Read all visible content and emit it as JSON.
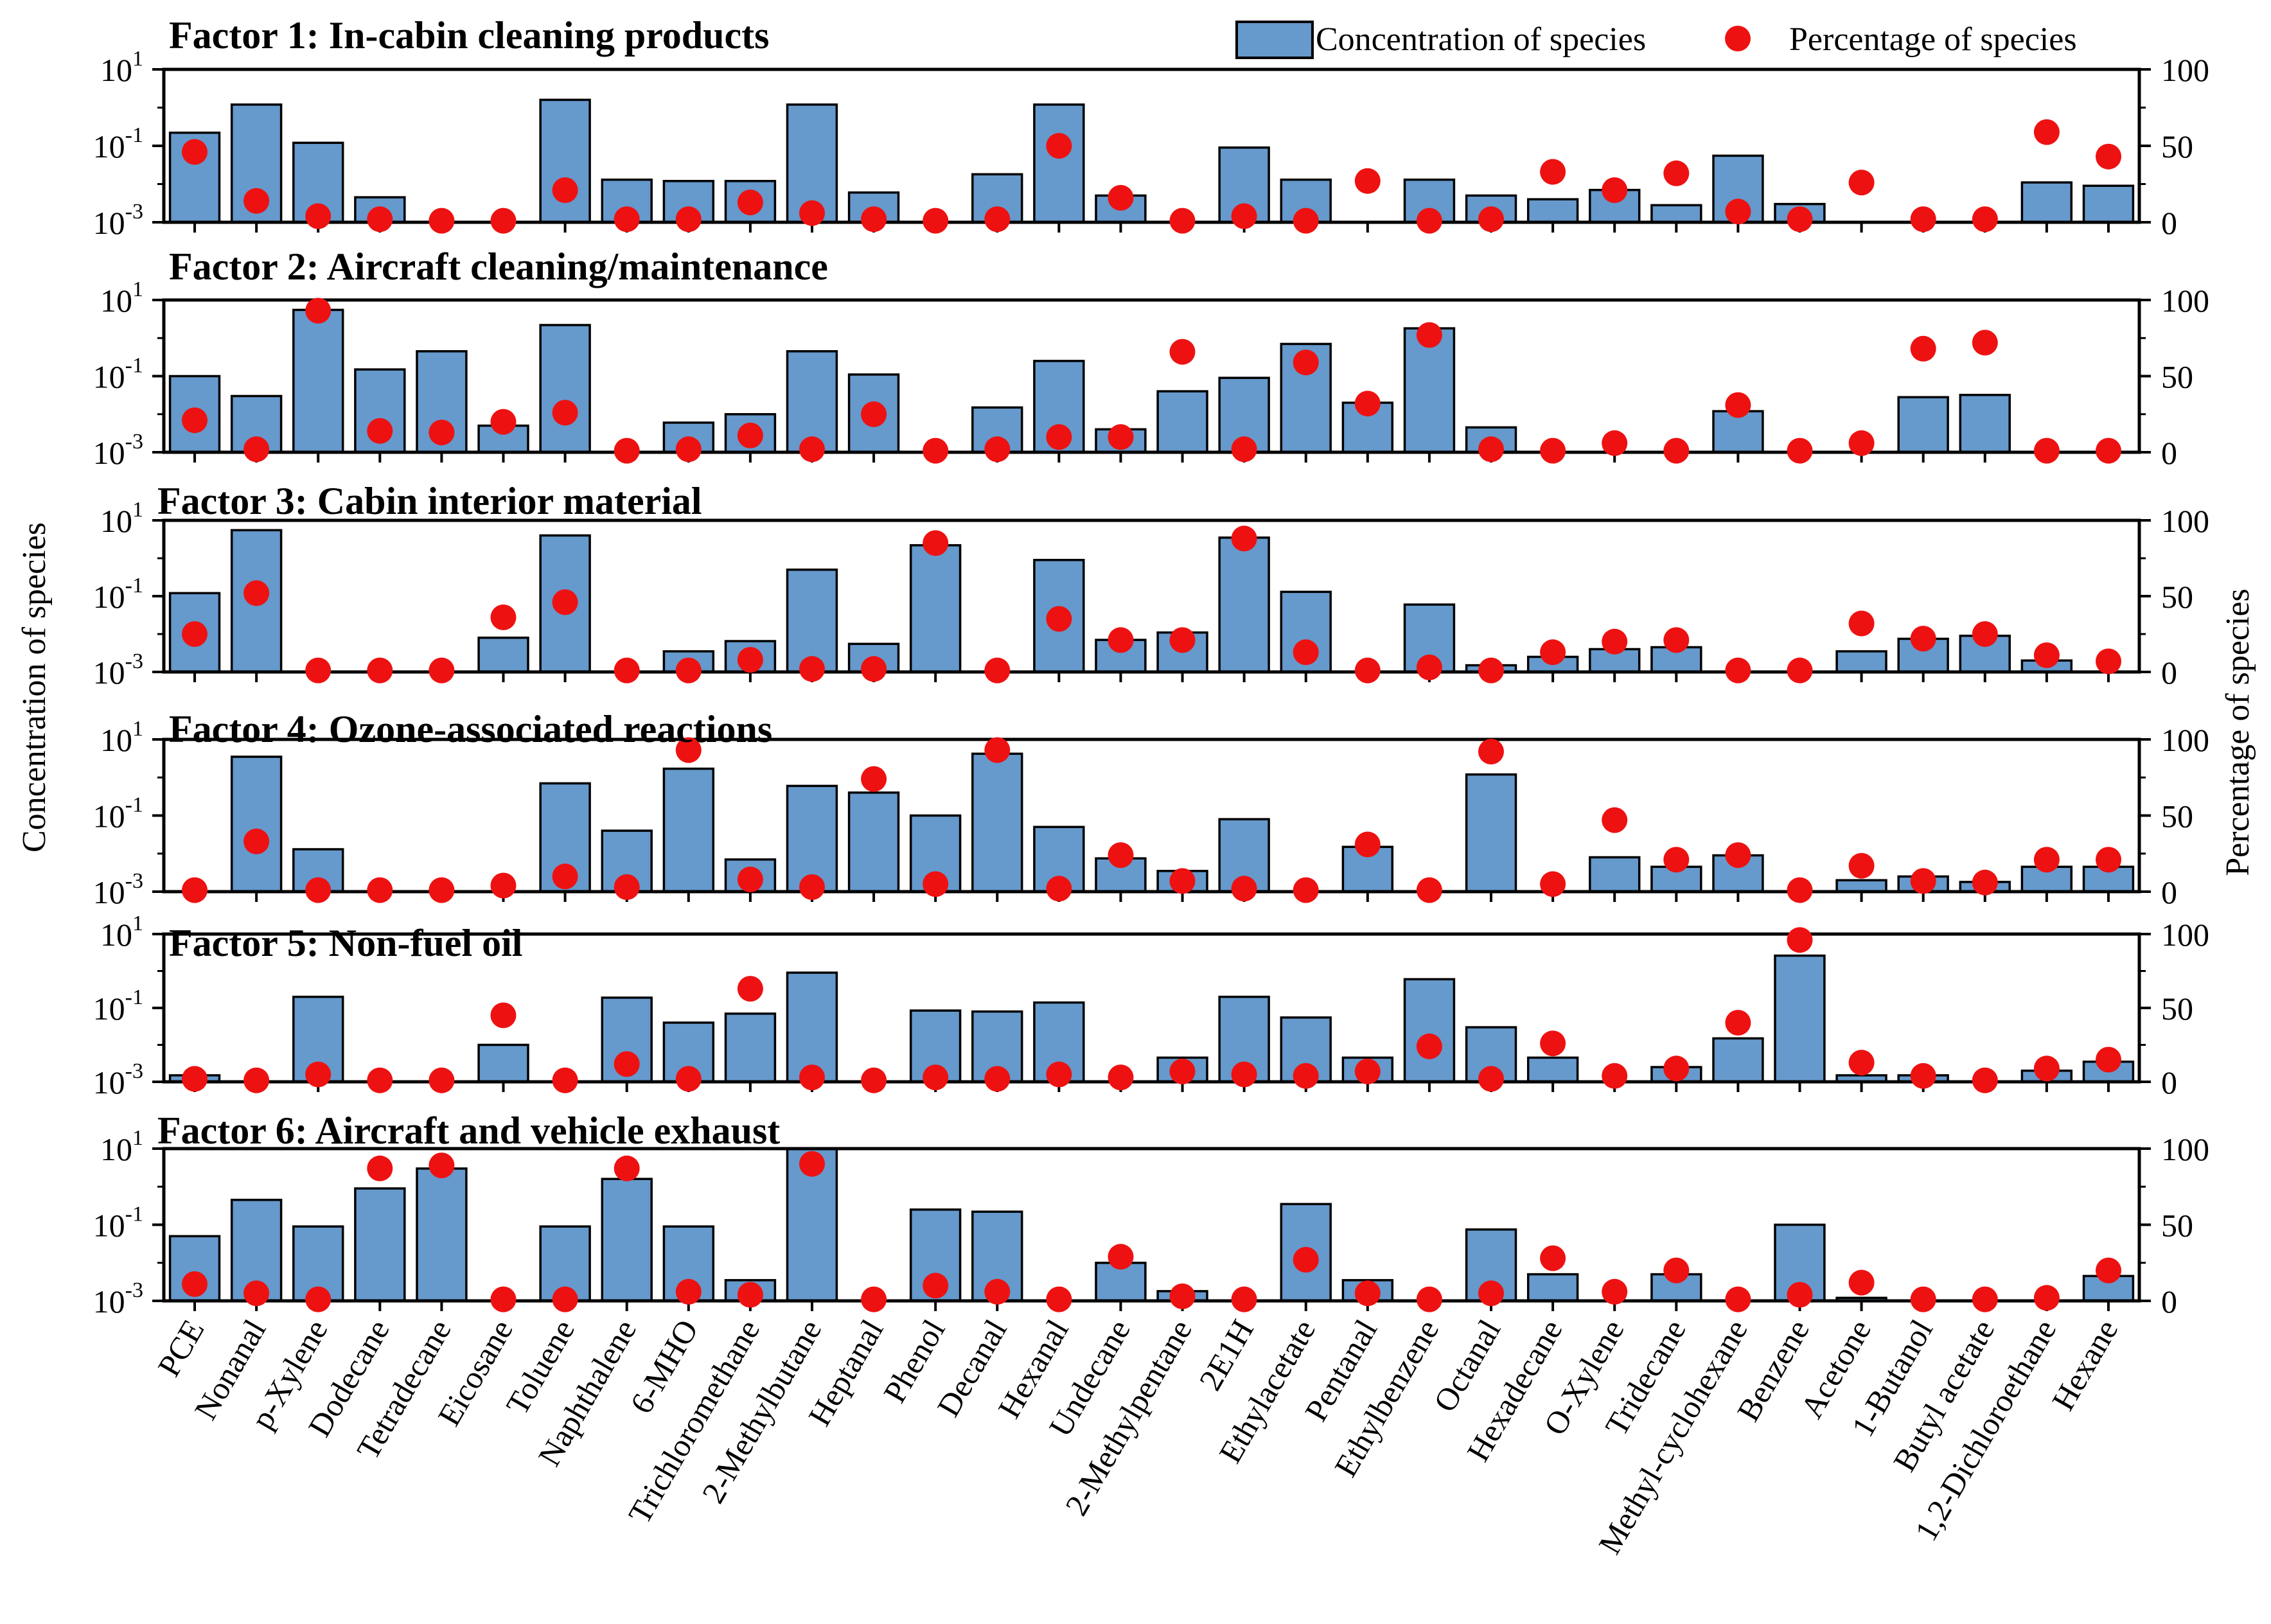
{
  "chart_data": {
    "type": "bar",
    "categories": [
      "PCE",
      "Nonanal",
      "p-Xylene",
      "Dodecane",
      "Tetradecane",
      "Eicosane",
      "Toluene",
      "Naphthalene",
      "6-MHO",
      "Trichloromethane",
      "2-Methylbutane",
      "Heptanal",
      "Phenol",
      "Decanal",
      "Hexanal",
      "Undecane",
      "2-Methylpentane",
      "2E1H",
      "Ethylacetate",
      "Pentanal",
      "Ethylbenzene",
      "Octanal",
      "Hexadecane",
      "O-Xylene",
      "Tridecane",
      "Methyl-cyclohexane",
      "Benzene",
      "Acetone",
      "1-Butanol",
      "Butyl acetate",
      "1,2-Dichloroethane",
      "Hexane"
    ],
    "ylabel_left": "Concentration of species",
    "ylabel_right": "Percentage of species",
    "left_axis": {
      "scale": "log",
      "ylim": [
        0.001,
        10
      ],
      "ticks": [
        {
          "base": "10",
          "exp": "1"
        },
        {
          "base": "10",
          "exp": "-1"
        },
        {
          "base": "10",
          "exp": "-3"
        }
      ]
    },
    "right_axis": {
      "scale": "linear",
      "ylim": [
        0,
        100
      ],
      "ticks": [
        "100",
        "50",
        "0"
      ]
    },
    "legend": {
      "placement": "top-right",
      "bar_label": "Concentration of species",
      "dot_label": "Percentage of species",
      "bar_color": "#6699CC",
      "dot_color": "#EE1111"
    },
    "panels": [
      {
        "title": "Factor 1: In-cabin cleaning products",
        "series": [
          {
            "name": "Concentration of species",
            "values": [
              0.22,
              1.2,
              0.12,
              0.0045,
              null,
              null,
              1.6,
              0.013,
              0.012,
              0.012,
              1.2,
              0.006,
              null,
              0.018,
              1.2,
              0.005,
              null,
              0.09,
              0.013,
              null,
              0.013,
              0.005,
              0.004,
              0.007,
              0.0028,
              0.055,
              0.003,
              null,
              null,
              null,
              0.011,
              0.009
            ]
          },
          {
            "name": "Percentage of species",
            "values": [
              46,
              14,
              4,
              2,
              1,
              1,
              21,
              2,
              2,
              13,
              6,
              2,
              1,
              2,
              50,
              16,
              1,
              4,
              1,
              27,
              1,
              2,
              33,
              21,
              32,
              7,
              2,
              26,
              2,
              2,
              59,
              43
            ]
          }
        ]
      },
      {
        "title": "Factor 2: Aircraft cleaning/maintenance",
        "series": [
          {
            "name": "Concentration of species",
            "values": [
              0.1,
              0.03,
              5.5,
              0.15,
              0.45,
              0.005,
              2.2,
              null,
              0.006,
              0.01,
              0.45,
              0.11,
              null,
              0.015,
              0.25,
              0.004,
              0.04,
              0.09,
              0.7,
              0.02,
              1.8,
              0.0045,
              null,
              null,
              null,
              0.012,
              null,
              null,
              0.028,
              0.032,
              null,
              null
            ]
          },
          {
            "name": "Percentage of species",
            "values": [
              21,
              2,
              93,
              14,
              13,
              20,
              26,
              1,
              2,
              11,
              2,
              25,
              1,
              2,
              10,
              10,
              66,
              2,
              59,
              32,
              77,
              2,
              1,
              6,
              1,
              31,
              1,
              6,
              68,
              72,
              1,
              1
            ]
          }
        ]
      },
      {
        "title": "Factor 3: Cabin interior material",
        "series": [
          {
            "name": "Concentration of species",
            "values": [
              0.12,
              5.5,
              null,
              null,
              null,
              0.008,
              4.0,
              null,
              0.0035,
              0.0065,
              0.5,
              0.0055,
              2.2,
              null,
              0.9,
              0.007,
              0.011,
              3.5,
              0.13,
              null,
              0.06,
              0.0015,
              0.0025,
              0.004,
              0.0045,
              null,
              null,
              0.0035,
              0.0075,
              0.009,
              0.002,
              null
            ]
          },
          {
            "name": "Percentage of species",
            "values": [
              25,
              52,
              1,
              1,
              1,
              36,
              46,
              1,
              1,
              8,
              2,
              2,
              85,
              1,
              35,
              21,
              21,
              88,
              13,
              1,
              3,
              1,
              13,
              20,
              21,
              1,
              1,
              32,
              22,
              25,
              11,
              7
            ]
          }
        ]
      },
      {
        "title": "Factor 4: Ozone-associated reactions",
        "series": [
          {
            "name": "Concentration of species",
            "values": [
              null,
              3.5,
              0.013,
              null,
              null,
              null,
              0.7,
              0.04,
              1.7,
              0.007,
              0.6,
              0.4,
              0.1,
              4.2,
              0.05,
              0.0075,
              0.0035,
              0.08,
              null,
              0.015,
              null,
              1.2,
              null,
              0.008,
              0.0045,
              0.009,
              null,
              0.002,
              0.0025,
              0.0018,
              0.0045,
              0.0045
            ]
          },
          {
            "name": "Percentage of species",
            "values": [
              1,
              33,
              1,
              1,
              1,
              4,
              10,
              3,
              93,
              8,
              3,
              74,
              5,
              93,
              2,
              24,
              7,
              2,
              1,
              31,
              1,
              92,
              5,
              47,
              21,
              24,
              1,
              17,
              7,
              6,
              21,
              21
            ]
          }
        ]
      },
      {
        "title": "Factor 5: Non-fuel oil",
        "series": [
          {
            "name": "Concentration of species",
            "values": [
              0.0015,
              null,
              0.2,
              null,
              null,
              0.01,
              null,
              0.19,
              0.04,
              0.07,
              0.9,
              null,
              0.085,
              0.08,
              0.14,
              null,
              0.0045,
              0.2,
              0.055,
              0.0045,
              0.6,
              0.03,
              0.0045,
              null,
              0.0025,
              0.015,
              2.6,
              0.0015,
              0.0015,
              null,
              0.002,
              0.0035
            ]
          },
          {
            "name": "Percentage of species",
            "values": [
              2,
              1,
              5,
              1,
              1,
              45,
              1,
              12,
              2,
              63,
              3,
              1,
              3,
              2,
              5,
              3,
              7,
              5,
              4,
              7,
              24,
              2,
              26,
              4,
              9,
              40,
              96,
              13,
              4,
              1,
              9,
              15
            ]
          }
        ]
      },
      {
        "title": "Factor 6: Aircraft and vehicle exhaust",
        "series": [
          {
            "name": "Concentration of species",
            "values": [
              0.05,
              0.45,
              0.09,
              0.9,
              3.0,
              null,
              0.09,
              1.6,
              0.09,
              0.0035,
              13,
              null,
              0.25,
              0.22,
              null,
              0.01,
              0.0018,
              null,
              0.35,
              0.0035,
              null,
              0.075,
              0.005,
              null,
              0.005,
              null,
              0.1,
              0.0012,
              null,
              null,
              null,
              0.0045
            ]
          },
          {
            "name": "Percentage of species",
            "values": [
              11,
              5,
              1,
              87,
              89,
              1,
              1,
              87,
              6,
              4,
              90,
              1,
              10,
              6,
              1,
              29,
              3,
              1,
              27,
              5,
              1,
              5,
              28,
              6,
              20,
              1,
              4,
              12,
              1,
              1,
              2,
              20
            ]
          }
        ]
      }
    ]
  }
}
